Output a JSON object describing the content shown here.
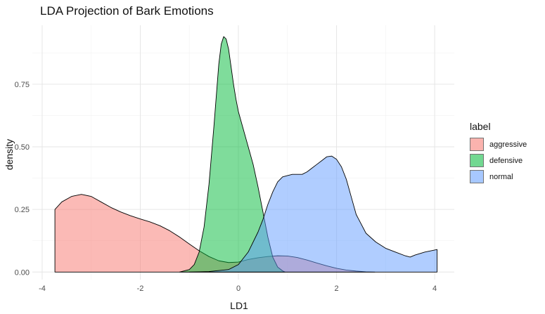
{
  "chart_data": {
    "type": "area",
    "title": "LDA Projection of Bark Emotions",
    "xlabel": "LD1",
    "ylabel": "density",
    "xlim": [
      -4.2,
      4.4
    ],
    "ylim": [
      -0.03,
      0.985
    ],
    "x_ticks": [
      -4,
      -2,
      0,
      2,
      4
    ],
    "y_ticks": [
      0.0,
      0.25,
      0.5,
      0.75
    ],
    "y_tick_labels": [
      "0.00",
      "0.25",
      "0.50",
      "0.75"
    ],
    "x_tick_labels": [
      "-4",
      "-2",
      "0",
      "2",
      "4"
    ],
    "grid": true,
    "legend": {
      "title": "label",
      "placement": "right"
    },
    "series": [
      {
        "name": "aggressive",
        "color": "#F8766D",
        "x": [
          -3.74,
          -3.6,
          -3.4,
          -3.2,
          -3.0,
          -2.8,
          -2.6,
          -2.4,
          -2.2,
          -2.0,
          -1.8,
          -1.6,
          -1.4,
          -1.2,
          -1.0,
          -0.8,
          -0.6,
          -0.4,
          -0.2,
          0.0,
          0.2,
          0.4,
          0.6,
          0.8,
          1.0,
          1.2,
          1.4,
          1.6,
          1.8,
          2.0,
          2.2,
          2.4,
          2.6,
          2.78
        ],
        "y": [
          0.25,
          0.28,
          0.302,
          0.31,
          0.302,
          0.28,
          0.258,
          0.24,
          0.225,
          0.212,
          0.2,
          0.185,
          0.165,
          0.14,
          0.112,
          0.085,
          0.062,
          0.045,
          0.038,
          0.04,
          0.05,
          0.057,
          0.062,
          0.065,
          0.064,
          0.058,
          0.048,
          0.036,
          0.025,
          0.015,
          0.008,
          0.004,
          0.001,
          0.0
        ]
      },
      {
        "name": "defensive",
        "color": "#00BA38",
        "x": [
          -1.2,
          -1.0,
          -0.9,
          -0.8,
          -0.7,
          -0.6,
          -0.5,
          -0.4,
          -0.35,
          -0.3,
          -0.25,
          -0.2,
          -0.15,
          -0.1,
          -0.05,
          0.0,
          0.1,
          0.2,
          0.3,
          0.4,
          0.5,
          0.6,
          0.7,
          0.8,
          0.9,
          0.95
        ],
        "y": [
          0.0,
          0.01,
          0.03,
          0.08,
          0.18,
          0.35,
          0.58,
          0.83,
          0.91,
          0.94,
          0.93,
          0.89,
          0.82,
          0.75,
          0.69,
          0.64,
          0.57,
          0.5,
          0.43,
          0.34,
          0.24,
          0.14,
          0.06,
          0.02,
          0.005,
          0.0
        ]
      },
      {
        "name": "normal",
        "color": "#619CFF",
        "x": [
          -1.0,
          -0.6,
          -0.2,
          0.0,
          0.2,
          0.4,
          0.5,
          0.6,
          0.7,
          0.8,
          0.9,
          1.0,
          1.1,
          1.2,
          1.3,
          1.4,
          1.5,
          1.6,
          1.7,
          1.8,
          1.9,
          2.0,
          2.1,
          2.2,
          2.3,
          2.4,
          2.6,
          2.8,
          3.0,
          3.2,
          3.4,
          3.5,
          3.6,
          3.8,
          4.0,
          4.05
        ],
        "y": [
          0.0,
          0.002,
          0.01,
          0.03,
          0.08,
          0.16,
          0.21,
          0.27,
          0.32,
          0.36,
          0.38,
          0.385,
          0.39,
          0.39,
          0.39,
          0.4,
          0.415,
          0.43,
          0.445,
          0.46,
          0.463,
          0.45,
          0.42,
          0.37,
          0.3,
          0.23,
          0.155,
          0.12,
          0.095,
          0.08,
          0.065,
          0.06,
          0.068,
          0.08,
          0.088,
          0.09
        ]
      }
    ]
  }
}
